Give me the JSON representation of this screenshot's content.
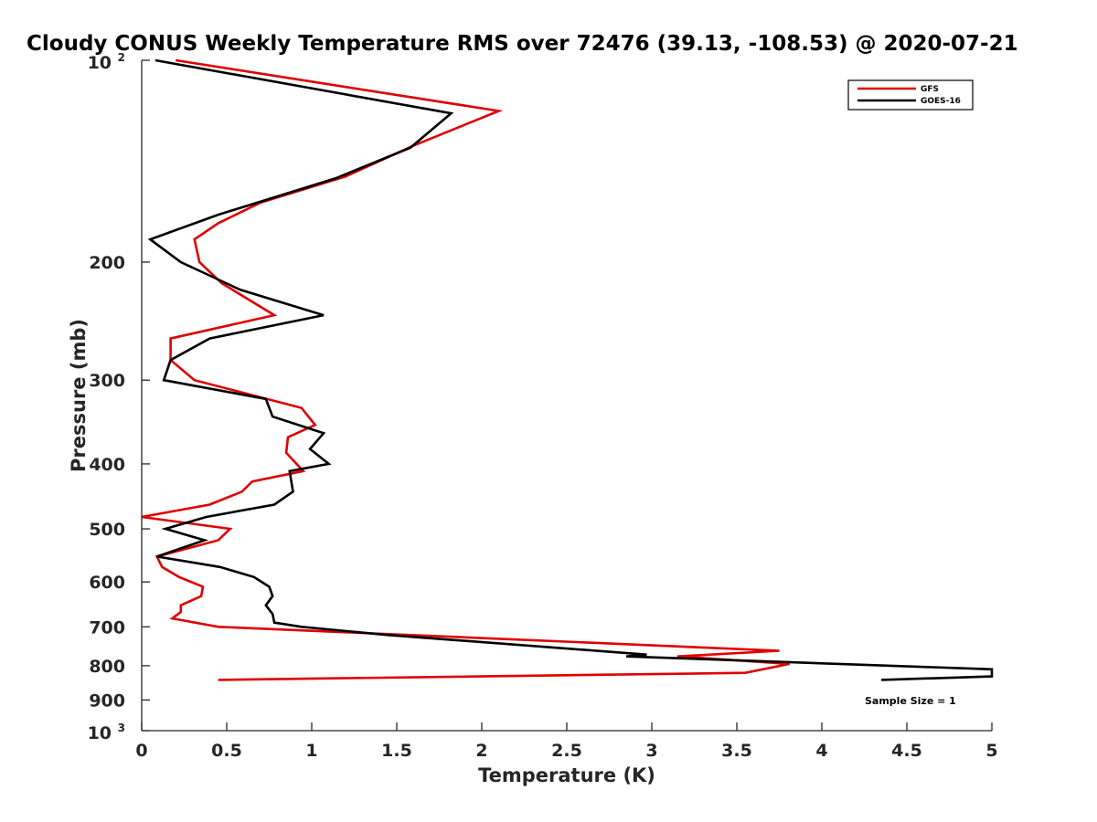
{
  "chart_data": {
    "type": "line",
    "title": "Cloudy CONUS Weekly Temperature RMS over 72476 (39.13, -108.53) @ 2020-07-21",
    "xlabel": "Temperature (K)",
    "ylabel": "Pressure (mb)",
    "xlim": [
      0,
      5
    ],
    "ylim": [
      100,
      1000
    ],
    "yscale": "log",
    "y_reversed": true,
    "xticks": [
      0,
      0.5,
      1,
      1.5,
      2,
      2.5,
      3,
      3.5,
      4,
      4.5,
      5
    ],
    "xtick_labels": [
      "0",
      "0.5",
      "1",
      "1.5",
      "2",
      "2.5",
      "3",
      "3.5",
      "4",
      "4.5",
      "5"
    ],
    "yticks": [
      200,
      300,
      400,
      500,
      600,
      700,
      800,
      900
    ],
    "ytick_labels": [
      "200",
      "300",
      "400",
      "500",
      "600",
      "700",
      "800",
      "900"
    ],
    "ytick_top": {
      "base": "10",
      "exp": "2"
    },
    "ytick_bottom": {
      "base": "10",
      "exp": "3"
    },
    "grid": false,
    "legend_position": "top-right",
    "annotation": "Sample Size = 1",
    "series": [
      {
        "name": "GFS",
        "color": "#e00000",
        "points": [
          [
            0.2,
            100
          ],
          [
            2.1,
            119
          ],
          [
            1.6,
            134
          ],
          [
            1.2,
            149
          ],
          [
            0.7,
            163
          ],
          [
            0.45,
            175
          ],
          [
            0.31,
            185
          ],
          [
            0.34,
            200
          ],
          [
            0.47,
            215
          ],
          [
            0.78,
            240
          ],
          [
            0.17,
            260
          ],
          [
            0.17,
            280
          ],
          [
            0.31,
            300
          ],
          [
            0.94,
            330
          ],
          [
            1.02,
            350
          ],
          [
            0.86,
            365
          ],
          [
            0.85,
            385
          ],
          [
            0.95,
            410
          ],
          [
            0.65,
            425
          ],
          [
            0.59,
            440
          ],
          [
            0.4,
            460
          ],
          [
            0.0,
            480
          ],
          [
            0.52,
            500
          ],
          [
            0.45,
            520
          ],
          [
            0.09,
            550
          ],
          [
            0.12,
            570
          ],
          [
            0.22,
            590
          ],
          [
            0.36,
            610
          ],
          [
            0.35,
            630
          ],
          [
            0.23,
            650
          ],
          [
            0.23,
            665
          ],
          [
            0.18,
            680
          ],
          [
            0.45,
            700
          ],
          [
            3.75,
            760
          ],
          [
            3.15,
            775
          ],
          [
            3.81,
            795
          ],
          [
            3.55,
            820
          ],
          [
            0.45,
            840
          ]
        ]
      },
      {
        "name": "GOES-16",
        "color": "#000000",
        "points": [
          [
            0.08,
            100
          ],
          [
            1.82,
            120
          ],
          [
            1.58,
            135
          ],
          [
            1.14,
            150
          ],
          [
            0.45,
            170
          ],
          [
            0.05,
            185
          ],
          [
            0.23,
            200
          ],
          [
            0.58,
            220
          ],
          [
            1.07,
            240
          ],
          [
            0.4,
            260
          ],
          [
            0.17,
            280
          ],
          [
            0.13,
            300
          ],
          [
            0.73,
            320
          ],
          [
            0.77,
            340
          ],
          [
            1.07,
            360
          ],
          [
            0.99,
            380
          ],
          [
            1.1,
            400
          ],
          [
            0.87,
            410
          ],
          [
            0.89,
            440
          ],
          [
            0.78,
            460
          ],
          [
            0.38,
            480
          ],
          [
            0.14,
            500
          ],
          [
            0.37,
            520
          ],
          [
            0.09,
            550
          ],
          [
            0.46,
            570
          ],
          [
            0.66,
            590
          ],
          [
            0.75,
            610
          ],
          [
            0.77,
            630
          ],
          [
            0.73,
            650
          ],
          [
            0.77,
            670
          ],
          [
            0.78,
            690
          ],
          [
            0.94,
            700
          ],
          [
            1.45,
            720
          ],
          [
            2.97,
            770
          ],
          [
            2.85,
            775
          ],
          [
            5.0,
            810
          ],
          [
            5.0,
            830
          ],
          [
            4.35,
            840
          ]
        ]
      }
    ]
  }
}
